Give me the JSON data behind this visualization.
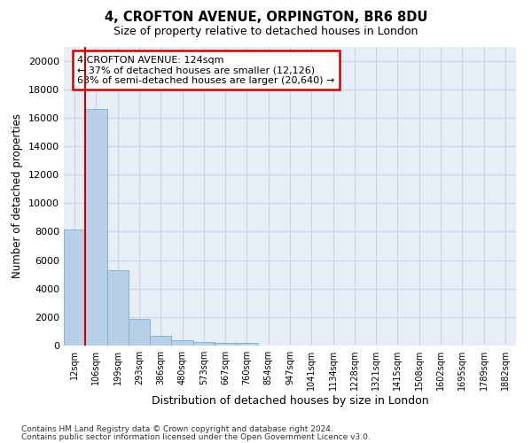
{
  "title_line1": "4, CROFTON AVENUE, ORPINGTON, BR6 8DU",
  "title_line2": "Size of property relative to detached houses in London",
  "xlabel": "Distribution of detached houses by size in London",
  "ylabel": "Number of detached properties",
  "categories": [
    "12sqm",
    "106sqm",
    "199sqm",
    "293sqm",
    "386sqm",
    "480sqm",
    "573sqm",
    "667sqm",
    "760sqm",
    "854sqm",
    "947sqm",
    "1041sqm",
    "1134sqm",
    "1228sqm",
    "1321sqm",
    "1415sqm",
    "1508sqm",
    "1602sqm",
    "1695sqm",
    "1789sqm",
    "1882sqm"
  ],
  "values": [
    8150,
    16600,
    5300,
    1850,
    700,
    350,
    270,
    200,
    175,
    0,
    0,
    0,
    0,
    0,
    0,
    0,
    0,
    0,
    0,
    0,
    0
  ],
  "bar_color": "#b8cfe8",
  "bar_edge_color": "#7aadd4",
  "ylim": [
    0,
    21000
  ],
  "yticks": [
    0,
    2000,
    4000,
    6000,
    8000,
    10000,
    12000,
    14000,
    16000,
    18000,
    20000
  ],
  "annotation_line1": "4 CROFTON AVENUE: 124sqm",
  "annotation_line2": "← 37% of detached houses are smaller (12,126)",
  "annotation_line3": "63% of semi-detached houses are larger (20,640) →",
  "annotation_box_color": "#ffffff",
  "annotation_box_edge_color": "#cc0000",
  "vline_color": "#cc0000",
  "grid_color": "#c8d4e8",
  "bg_color": "#e8eef8",
  "footnote1": "Contains HM Land Registry data © Crown copyright and database right 2024.",
  "footnote2": "Contains public sector information licensed under the Open Government Licence v3.0."
}
